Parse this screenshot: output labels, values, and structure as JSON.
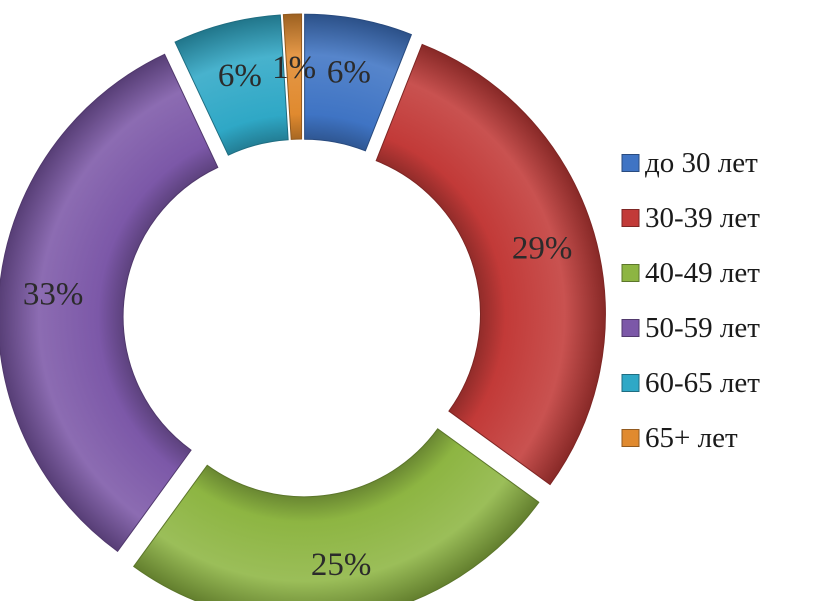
{
  "chart_data": {
    "type": "pie",
    "variant": "exploded-doughnut",
    "title": "",
    "categories": [
      "до 30 лет",
      "30-39 лет",
      "40-49 лет",
      "50-59 лет",
      "60-65 лет",
      "65+ лет"
    ],
    "values": [
      6,
      29,
      25,
      33,
      6,
      1
    ],
    "data_labels": [
      "6%",
      "29%",
      "25%",
      "33%",
      "6%",
      "1%"
    ],
    "colors": [
      "#3f74c4",
      "#c23a38",
      "#8db542",
      "#7c58a8",
      "#2fa8c6",
      "#e08a2f"
    ],
    "legend_position": "right",
    "start_angle_deg": 0,
    "direction": "clockwise"
  }
}
